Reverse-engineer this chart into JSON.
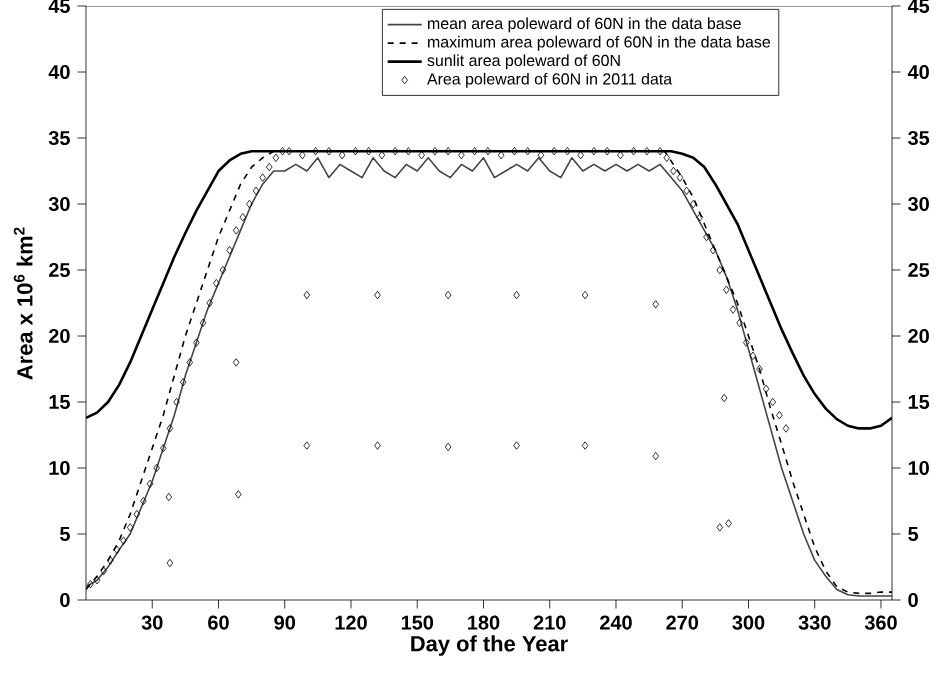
{
  "chart_data": {
    "type": "line",
    "xlabel": "Day of the Year",
    "ylabel": "Area x 10$^{6}$ km$^{2}$",
    "xlim": [
      0,
      365
    ],
    "xticks": [
      30,
      60,
      90,
      120,
      150,
      180,
      210,
      240,
      270,
      300,
      330,
      360
    ],
    "ylim": [
      0,
      45
    ],
    "yticks": [
      0,
      5,
      10,
      15,
      20,
      25,
      30,
      35,
      40,
      45
    ],
    "y2lim": [
      0,
      45
    ],
    "y2ticks": [
      0,
      5,
      10,
      15,
      20,
      25,
      30,
      35,
      40,
      45
    ],
    "legend": "top right",
    "grid": false,
    "series": [
      {
        "name": "mean  area poleward of 60N in the data base",
        "line_style": "solid",
        "marker": "none",
        "color": "#444444",
        "x": [
          0,
          5,
          10,
          15,
          20,
          25,
          30,
          35,
          40,
          45,
          50,
          55,
          60,
          65,
          70,
          75,
          80,
          85,
          90,
          95,
          100,
          105,
          110,
          115,
          120,
          125,
          130,
          135,
          140,
          145,
          150,
          155,
          160,
          165,
          170,
          175,
          180,
          185,
          190,
          195,
          200,
          205,
          210,
          215,
          220,
          225,
          230,
          235,
          240,
          245,
          250,
          255,
          260,
          265,
          270,
          275,
          280,
          285,
          290,
          295,
          300,
          305,
          310,
          315,
          320,
          325,
          330,
          335,
          340,
          345,
          350,
          355,
          360,
          365
        ],
        "values": [
          1,
          1.5,
          2.5,
          3.8,
          5,
          7,
          9,
          11.5,
          14,
          17,
          19.5,
          22,
          24,
          26,
          28,
          30,
          31.5,
          32.5,
          32.5,
          33,
          32.5,
          33.5,
          32,
          33,
          32.5,
          32,
          33.5,
          32.5,
          32,
          33,
          32.5,
          33.5,
          32.5,
          32,
          33,
          32.5,
          33.5,
          32,
          32.5,
          33,
          32.5,
          33.5,
          32.5,
          32,
          33.5,
          32.5,
          33,
          32.5,
          33,
          32.5,
          33,
          32.5,
          33,
          32,
          31,
          29.5,
          28,
          26.5,
          24.5,
          22,
          19,
          16,
          13,
          10,
          7.5,
          5,
          3,
          1.8,
          0.8,
          0.4,
          0.3,
          0.3,
          0.3,
          0.3
        ]
      },
      {
        "name": "maximum area poleward of 60N in the data base",
        "line_style": "dashed",
        "marker": "none",
        "color": "#000000",
        "x": [
          0,
          5,
          10,
          15,
          20,
          25,
          30,
          35,
          40,
          45,
          50,
          55,
          60,
          65,
          70,
          75,
          80,
          85,
          90,
          262,
          270,
          275,
          280,
          285,
          290,
          295,
          300,
          305,
          310,
          315,
          320,
          325,
          330,
          335,
          340,
          345,
          350,
          355,
          360,
          365
        ],
        "values": [
          0.8,
          1.8,
          3,
          4.5,
          6.5,
          9,
          11.5,
          14,
          17,
          20,
          22.5,
          25,
          27.5,
          29.5,
          31.5,
          32.8,
          33.5,
          34,
          34,
          34,
          32,
          30.5,
          28.5,
          26.5,
          24.5,
          22.5,
          20,
          17.5,
          14.5,
          11.8,
          9,
          6.5,
          4,
          2.2,
          1,
          0.6,
          0.5,
          0.5,
          0.6,
          0.6
        ]
      },
      {
        "name": "sunlit area poleward of 60N",
        "line_style": "solid",
        "marker": "none",
        "color": "#000000",
        "x": [
          0,
          5,
          10,
          15,
          20,
          25,
          30,
          35,
          40,
          45,
          50,
          55,
          60,
          65,
          70,
          75,
          78,
          265,
          270,
          275,
          280,
          285,
          290,
          295,
          300,
          305,
          310,
          315,
          320,
          325,
          330,
          335,
          340,
          345,
          350,
          355,
          360,
          365
        ],
        "values": [
          13.8,
          14.2,
          15,
          16.3,
          18,
          20,
          22,
          24,
          26,
          27.8,
          29.5,
          31,
          32.5,
          33.3,
          33.8,
          34,
          34,
          34,
          33.8,
          33.5,
          32.8,
          31.5,
          30,
          28.5,
          26.5,
          24.5,
          22.5,
          20.5,
          18.7,
          17,
          15.6,
          14.5,
          13.7,
          13.2,
          13,
          13,
          13.2,
          13.8
        ]
      },
      {
        "name": "Area poleward of 60N in 2011 data",
        "type": "scatter",
        "marker": "diamond",
        "color": "#000000",
        "x": [
          2,
          5,
          8,
          11,
          14,
          17,
          20,
          23,
          26,
          29,
          32,
          35,
          38,
          41,
          44,
          47,
          50,
          53,
          56,
          59,
          62,
          65,
          68,
          71,
          74,
          77,
          80,
          83,
          86,
          89,
          92,
          98,
          104,
          110,
          116,
          122,
          128,
          134,
          140,
          146,
          152,
          158,
          164,
          170,
          176,
          182,
          188,
          194,
          200,
          206,
          212,
          218,
          224,
          230,
          236,
          242,
          248,
          254,
          260,
          263,
          266,
          269,
          272,
          275,
          278,
          281,
          284,
          287,
          290,
          293,
          296,
          299,
          302,
          305,
          308,
          311,
          314,
          317,
          37.5,
          38,
          68,
          69,
          100,
          100,
          132,
          132,
          164,
          164,
          195,
          195,
          226,
          226,
          258,
          258,
          289,
          287,
          291
        ],
        "values": [
          1.2,
          1.5,
          2.2,
          3,
          3.8,
          4.5,
          5.5,
          6.5,
          7.5,
          8.8,
          10,
          11.5,
          13,
          15,
          16.5,
          18,
          19.5,
          21,
          22.5,
          24,
          25,
          26.5,
          28,
          29,
          30,
          31,
          32,
          32.8,
          33.5,
          34,
          34,
          33.7,
          34,
          34,
          33.7,
          34,
          34,
          33.7,
          34,
          34,
          33.7,
          34,
          34,
          33.7,
          34,
          34,
          33.7,
          34,
          34,
          33.7,
          34,
          34,
          33.7,
          34,
          34,
          33.7,
          34,
          34,
          34,
          33.5,
          32.5,
          32,
          31,
          30,
          29,
          27.5,
          26.5,
          25,
          23.5,
          22,
          21,
          19.5,
          18.5,
          17.5,
          16,
          15,
          14,
          13,
          7.8,
          2.8,
          18,
          8,
          23.1,
          11.7,
          23.1,
          11.7,
          23.1,
          11.6,
          23.1,
          11.7,
          23.1,
          11.7,
          22.4,
          10.9,
          15.3,
          5.5,
          5.8
        ]
      }
    ]
  }
}
